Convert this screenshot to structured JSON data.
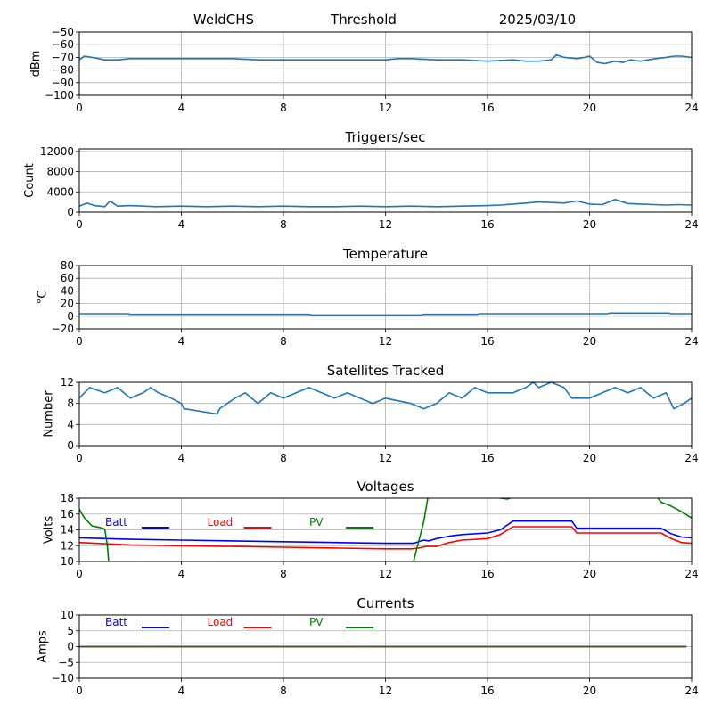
{
  "header": {
    "left": "WeldCHS",
    "center": "Threshold",
    "right": "2025/03/10"
  },
  "colors": {
    "series": "#1f77b4",
    "grid": "#b0b0b0",
    "batt": "#0000ff",
    "load": "#ff0000",
    "pv": "#008000"
  },
  "chart_data": [
    {
      "type": "line",
      "title": "",
      "ylabel": "dBm",
      "xlabel": "",
      "xlim": [
        0,
        24
      ],
      "ylim": [
        -100,
        -50
      ],
      "xticks": [
        0,
        4,
        8,
        12,
        16,
        20,
        24
      ],
      "yticks": [
        -100,
        -90,
        -80,
        -70,
        -60,
        -50
      ],
      "grid": true,
      "series": [
        {
          "name": "",
          "x": [
            0,
            0.2,
            0.5,
            1,
            1.5,
            2,
            3,
            4,
            5,
            6,
            7,
            8,
            9,
            10,
            11,
            12,
            12.5,
            13,
            14,
            15,
            16,
            17,
            17.5,
            18,
            18.5,
            18.7,
            19,
            19.5,
            19.8,
            20,
            20.3,
            20.6,
            21,
            21.3,
            21.6,
            22,
            22.3,
            22.6,
            23,
            23.3,
            23.6,
            24
          ],
          "y": [
            -72,
            -69,
            -70,
            -72,
            -72,
            -71,
            -71,
            -71,
            -71,
            -71,
            -72,
            -72,
            -72,
            -72,
            -72,
            -72,
            -71,
            -71,
            -72,
            -72,
            -73,
            -72,
            -73,
            -73,
            -72,
            -68,
            -70,
            -71,
            -70,
            -69,
            -74,
            -75,
            -73,
            -74,
            -72,
            -73,
            -72,
            -71,
            -70,
            -69,
            -69,
            -70
          ]
        }
      ]
    },
    {
      "type": "line",
      "title": "Triggers/sec",
      "ylabel": "Count",
      "xlabel": "",
      "xlim": [
        0,
        24
      ],
      "ylim": [
        0,
        12500
      ],
      "xticks": [
        0,
        4,
        8,
        12,
        16,
        20,
        24
      ],
      "yticks": [
        0,
        4000,
        8000,
        12000
      ],
      "grid": true,
      "series": [
        {
          "name": "",
          "x": [
            0,
            0.3,
            0.6,
            1,
            1.2,
            1.5,
            2,
            3,
            4,
            5,
            6,
            7,
            8,
            9,
            10,
            11,
            12,
            13,
            14,
            15,
            16,
            16.5,
            17,
            17.5,
            18,
            18.5,
            19,
            19.5,
            20,
            20.5,
            21,
            21.5,
            22,
            22.5,
            23,
            23.5,
            24
          ],
          "y": [
            1200,
            1800,
            1300,
            1100,
            2200,
            1200,
            1300,
            1100,
            1200,
            1100,
            1200,
            1100,
            1200,
            1100,
            1100,
            1200,
            1100,
            1200,
            1100,
            1200,
            1300,
            1400,
            1600,
            1800,
            2000,
            1900,
            1800,
            2200,
            1600,
            1500,
            2500,
            1700,
            1600,
            1500,
            1400,
            1500,
            1400
          ]
        }
      ]
    },
    {
      "type": "line",
      "title": "Temperature",
      "ylabel": "°C",
      "xlabel": "",
      "xlim": [
        0,
        24
      ],
      "ylim": [
        -20,
        80
      ],
      "xticks": [
        0,
        4,
        8,
        12,
        16,
        20,
        24
      ],
      "yticks": [
        -20,
        0,
        20,
        40,
        60,
        80
      ],
      "grid": true,
      "series": [
        {
          "name": "",
          "x": [
            0,
            1.9,
            2,
            9,
            9.1,
            13.4,
            13.5,
            15.6,
            15.7,
            20.7,
            20.8,
            23.1,
            23.2,
            24
          ],
          "y": [
            4,
            4,
            3,
            3,
            2,
            2,
            3,
            3,
            4,
            4,
            5,
            5,
            4,
            4
          ]
        }
      ]
    },
    {
      "type": "line",
      "title": "Satellites Tracked",
      "ylabel": "Number",
      "xlabel": "",
      "xlim": [
        0,
        24
      ],
      "ylim": [
        0,
        12
      ],
      "xticks": [
        0,
        4,
        8,
        12,
        16,
        20,
        24
      ],
      "yticks": [
        0,
        4,
        8,
        12
      ],
      "grid": true,
      "series": [
        {
          "name": "",
          "x": [
            0,
            0.2,
            0.4,
            1,
            1.5,
            2,
            2.5,
            2.8,
            3.1,
            3.6,
            4,
            4.1,
            5.4,
            5.5,
            6.1,
            6.5,
            7,
            7.5,
            8,
            8.5,
            9,
            9.5,
            10,
            10.5,
            11,
            11.5,
            12,
            13,
            13.5,
            14,
            14.5,
            15,
            15.5,
            16,
            17,
            17.5,
            17.8,
            18,
            18.5,
            19,
            19.3,
            20,
            20.5,
            21,
            21.5,
            22,
            22.5,
            23,
            23.3,
            23.7,
            24
          ],
          "y": [
            9,
            10,
            11,
            10,
            11,
            9,
            10,
            11,
            10,
            9,
            8,
            7,
            6,
            7,
            9,
            10,
            8,
            10,
            9,
            10,
            11,
            10,
            9,
            10,
            9,
            8,
            9,
            8,
            7,
            8,
            10,
            9,
            11,
            10,
            10,
            11,
            12,
            11,
            12,
            11,
            9,
            9,
            10,
            11,
            10,
            11,
            9,
            10,
            7,
            8,
            9
          ]
        }
      ]
    },
    {
      "type": "line",
      "title": "Voltages",
      "ylabel": "Volts",
      "xlabel": "",
      "xlim": [
        0,
        24
      ],
      "ylim": [
        10,
        18
      ],
      "xticks": [
        0,
        4,
        8,
        12,
        16,
        20,
        24
      ],
      "yticks": [
        10,
        12,
        14,
        16,
        18
      ],
      "grid": true,
      "legend": "top-left",
      "series": [
        {
          "name": "Batt",
          "color": "#0000ff",
          "x": [
            0,
            2,
            4,
            6,
            8,
            10,
            12,
            13.1,
            13.5,
            13.7,
            14,
            14.5,
            15,
            16,
            16.5,
            17,
            18,
            19.3,
            19.5,
            20,
            22,
            22.8,
            23.2,
            23.6,
            24
          ],
          "y": [
            13,
            12.8,
            12.7,
            12.6,
            12.5,
            12.4,
            12.3,
            12.3,
            12.7,
            12.6,
            12.9,
            13.2,
            13.4,
            13.6,
            14,
            15.1,
            15.1,
            15.1,
            14.2,
            14.2,
            14.2,
            14.2,
            13.5,
            13.1,
            13
          ]
        },
        {
          "name": "Load",
          "color": "#ff0000",
          "x": [
            0,
            2,
            4,
            6,
            8,
            10,
            12,
            13,
            13.3,
            13.6,
            14,
            14.5,
            15,
            16,
            16.5,
            17,
            18,
            19.3,
            19.5,
            20,
            22,
            22.8,
            23.2,
            23.6,
            24
          ],
          "y": [
            12.4,
            12.1,
            12,
            11.9,
            11.8,
            11.7,
            11.6,
            11.6,
            11.7,
            11.9,
            11.9,
            12.4,
            12.7,
            12.9,
            13.4,
            14.4,
            14.4,
            14.4,
            13.6,
            13.6,
            13.6,
            13.6,
            12.9,
            12.4,
            12.3
          ]
        },
        {
          "name": "PV",
          "color": "#008000",
          "x": [
            0,
            0.2,
            0.5,
            0.8,
            1,
            1.1,
            1.2,
            12.9,
            13.1,
            13.5,
            13.7,
            16.3,
            16.5,
            16.8,
            17.5,
            22.5,
            22.8,
            23.2,
            23.6,
            24
          ],
          "y": [
            16.6,
            15.5,
            14.5,
            14.3,
            14.1,
            12,
            8,
            8,
            10,
            15,
            18.8,
            18.8,
            18,
            17.9,
            18.8,
            18.8,
            17.5,
            17,
            16.3,
            15.5
          ]
        }
      ]
    },
    {
      "type": "line",
      "title": "Currents",
      "ylabel": "Amps",
      "xlabel": "",
      "xlim": [
        0,
        24
      ],
      "ylim": [
        -10,
        10
      ],
      "xticks": [
        0,
        4,
        8,
        12,
        16,
        20,
        24
      ],
      "yticks": [
        -10,
        -5,
        0,
        5,
        10
      ],
      "grid": true,
      "legend": "top-left",
      "series": [
        {
          "name": "Batt",
          "color": "#0000ff",
          "x": [
            0,
            23.8
          ],
          "y": [
            0,
            0
          ]
        },
        {
          "name": "Load",
          "color": "#ff0000",
          "x": [
            0,
            23.8
          ],
          "y": [
            0,
            0
          ]
        },
        {
          "name": "PV",
          "color": "#008000",
          "x": [
            0,
            23.8
          ],
          "y": [
            0,
            0
          ]
        }
      ]
    }
  ]
}
